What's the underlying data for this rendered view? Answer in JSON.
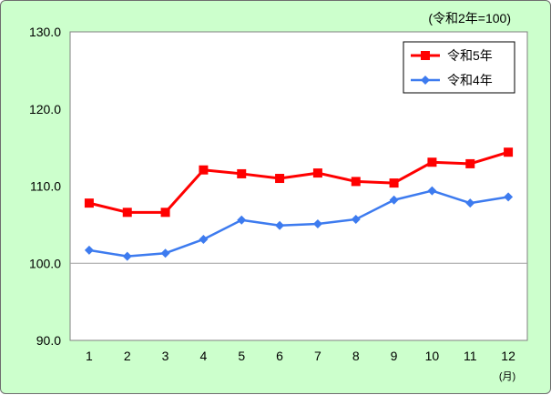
{
  "chart_data": {
    "type": "line",
    "title": "",
    "unit_note": "(令和2年=100)",
    "xlabel": "(月)",
    "ylabel": "",
    "categories": [
      "1",
      "2",
      "3",
      "4",
      "5",
      "6",
      "7",
      "8",
      "9",
      "10",
      "11",
      "12"
    ],
    "ylim": [
      90.0,
      130.0
    ],
    "yticks": [
      "90.0",
      "100.0",
      "110.0",
      "120.0",
      "130.0"
    ],
    "grid": "reference line at 100.0",
    "legend_position": "top-right",
    "series": [
      {
        "name": "令和5年",
        "color": "#ff0000",
        "marker": "square",
        "values": [
          107.8,
          106.6,
          106.6,
          112.1,
          111.6,
          111.0,
          111.7,
          110.6,
          110.4,
          113.1,
          112.9,
          114.4
        ]
      },
      {
        "name": "令和4年",
        "color": "#3d7bef",
        "marker": "diamond",
        "values": [
          101.7,
          100.9,
          101.3,
          103.1,
          105.6,
          104.9,
          105.1,
          105.7,
          108.2,
          109.4,
          107.8,
          108.6
        ]
      }
    ]
  }
}
